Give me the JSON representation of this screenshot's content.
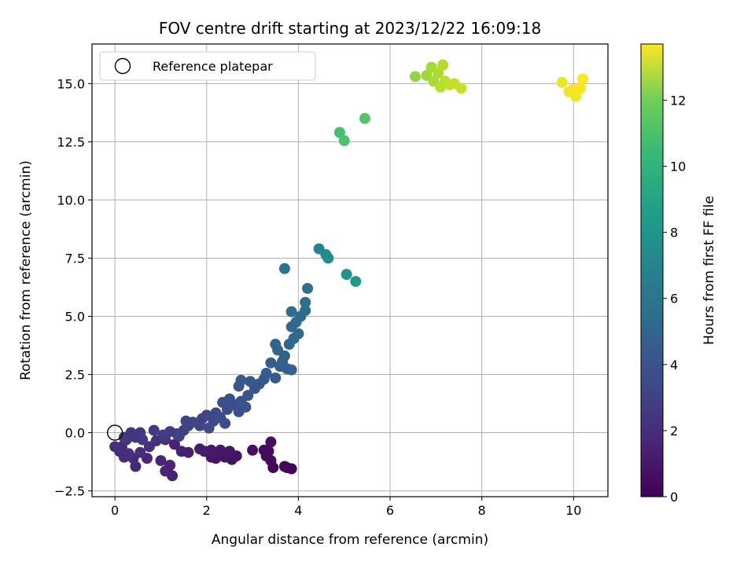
{
  "chart_data": {
    "type": "scatter",
    "title": "FOV centre drift starting at 2023/12/22 16:09:18",
    "xlabel": "Angular distance from reference (arcmin)",
    "ylabel": "Rotation from reference (arcmin)",
    "xlim": [
      -0.5,
      10.75
    ],
    "ylim": [
      -2.75,
      16.7
    ],
    "xticks": [
      0,
      2,
      4,
      6,
      8,
      10
    ],
    "yticks": [
      -2.5,
      0.0,
      2.5,
      5.0,
      7.5,
      10.0,
      12.5,
      15.0
    ],
    "xtick_labels": [
      "0",
      "2",
      "4",
      "6",
      "8",
      "10"
    ],
    "ytick_labels": [
      "−2.5",
      "0.0",
      "2.5",
      "5.0",
      "7.5",
      "10.0",
      "12.5",
      "15.0"
    ],
    "grid": true,
    "legend": {
      "placement": "upper-left",
      "entries": [
        "Reference platepar"
      ]
    },
    "reference_point": {
      "x": 0,
      "y": 0
    },
    "colorbar": {
      "label": "Hours from first FF file",
      "range": [
        0,
        13.7
      ],
      "ticks": [
        0,
        2,
        4,
        6,
        8,
        10,
        12
      ],
      "tick_labels": [
        "0",
        "2",
        "4",
        "6",
        "8",
        "10",
        "12"
      ],
      "colormap": "viridis"
    },
    "points": [
      [
        3.85,
        -1.55,
        0.05
      ],
      [
        3.75,
        -1.5,
        0.1
      ],
      [
        3.45,
        -1.5,
        0.15
      ],
      [
        3.7,
        -1.45,
        0.2
      ],
      [
        3.4,
        -1.2,
        0.3
      ],
      [
        3.3,
        -1.0,
        0.35
      ],
      [
        3.35,
        -0.8,
        0.4
      ],
      [
        3.25,
        -0.75,
        0.45
      ],
      [
        3.4,
        -0.4,
        0.5
      ],
      [
        3.0,
        -0.75,
        0.55
      ],
      [
        2.55,
        -1.15,
        0.6
      ],
      [
        2.65,
        -1.0,
        0.65
      ],
      [
        2.4,
        -1.05,
        0.7
      ],
      [
        2.2,
        -1.1,
        0.75
      ],
      [
        2.1,
        -1.05,
        0.8
      ],
      [
        2.5,
        -0.8,
        0.85
      ],
      [
        2.3,
        -0.75,
        0.9
      ],
      [
        2.1,
        -0.75,
        0.95
      ],
      [
        1.95,
        -0.8,
        1.0
      ],
      [
        1.85,
        -0.7,
        1.05
      ],
      [
        1.6,
        -0.85,
        1.1
      ],
      [
        1.45,
        -0.8,
        1.2
      ],
      [
        1.3,
        -0.5,
        1.25
      ],
      [
        1.25,
        -1.85,
        1.3
      ],
      [
        1.1,
        -1.65,
        1.35
      ],
      [
        1.2,
        -1.4,
        1.4
      ],
      [
        1.0,
        -1.2,
        1.45
      ],
      [
        0.7,
        -1.1,
        1.5
      ],
      [
        0.45,
        -1.45,
        1.55
      ],
      [
        0.4,
        -1.1,
        1.6
      ],
      [
        0.2,
        -1.05,
        1.65
      ],
      [
        0.1,
        -0.8,
        1.7
      ],
      [
        0.0,
        -0.6,
        1.75
      ],
      [
        0.15,
        -0.6,
        1.8
      ],
      [
        0.3,
        -0.9,
        1.85
      ],
      [
        0.55,
        -0.85,
        1.9
      ],
      [
        0.75,
        -0.6,
        1.95
      ],
      [
        0.9,
        -0.35,
        2.0
      ],
      [
        1.1,
        -0.3,
        2.05
      ],
      [
        0.25,
        -0.3,
        2.1
      ],
      [
        0.45,
        -0.2,
        2.15
      ],
      [
        0.55,
        0.0,
        2.2
      ],
      [
        0.35,
        0.0,
        2.25
      ],
      [
        0.2,
        -0.2,
        2.3
      ],
      [
        0.6,
        -0.3,
        2.35
      ],
      [
        0.85,
        0.1,
        2.4
      ],
      [
        1.05,
        -0.1,
        2.45
      ],
      [
        1.2,
        0.05,
        2.5
      ],
      [
        1.35,
        -0.05,
        2.55
      ],
      [
        1.5,
        0.1,
        2.6
      ],
      [
        1.4,
        -0.15,
        2.65
      ],
      [
        1.6,
        0.3,
        2.7
      ],
      [
        1.7,
        0.45,
        2.75
      ],
      [
        1.55,
        0.5,
        2.8
      ],
      [
        1.85,
        0.3,
        2.85
      ],
      [
        1.9,
        0.6,
        2.9
      ],
      [
        2.0,
        0.75,
        2.95
      ],
      [
        2.15,
        0.5,
        3.0
      ],
      [
        2.2,
        0.85,
        3.05
      ],
      [
        2.05,
        0.2,
        3.1
      ],
      [
        2.4,
        0.4,
        3.15
      ],
      [
        2.3,
        0.65,
        3.2
      ],
      [
        2.45,
        1.0,
        3.25
      ],
      [
        2.6,
        1.2,
        3.3
      ],
      [
        2.35,
        1.3,
        3.35
      ],
      [
        2.5,
        1.45,
        3.4
      ],
      [
        2.7,
        0.9,
        3.45
      ],
      [
        2.85,
        1.1,
        3.5
      ],
      [
        2.75,
        1.35,
        3.55
      ],
      [
        2.9,
        1.6,
        3.6
      ],
      [
        3.05,
        1.9,
        3.65
      ],
      [
        3.15,
        2.1,
        3.7
      ],
      [
        2.95,
        2.2,
        3.75
      ],
      [
        2.7,
        2.0,
        3.8
      ],
      [
        2.75,
        2.25,
        3.85
      ],
      [
        3.25,
        2.3,
        3.9
      ],
      [
        3.3,
        2.55,
        3.95
      ],
      [
        3.5,
        2.35,
        4.0
      ],
      [
        3.4,
        3.0,
        4.05
      ],
      [
        3.6,
        2.85,
        4.1
      ],
      [
        3.75,
        2.75,
        4.15
      ],
      [
        3.85,
        2.7,
        4.2
      ],
      [
        3.65,
        3.05,
        4.25
      ],
      [
        3.7,
        3.3,
        4.3
      ],
      [
        3.55,
        3.55,
        4.35
      ],
      [
        3.5,
        3.8,
        4.4
      ],
      [
        3.8,
        3.8,
        4.45
      ],
      [
        3.9,
        4.05,
        4.5
      ],
      [
        4.0,
        4.25,
        4.55
      ],
      [
        3.85,
        4.55,
        4.6
      ],
      [
        4.05,
        5.0,
        4.65
      ],
      [
        3.95,
        4.75,
        4.7
      ],
      [
        4.15,
        5.25,
        4.75
      ],
      [
        3.85,
        5.2,
        4.8
      ],
      [
        4.15,
        5.6,
        4.9
      ],
      [
        4.2,
        6.2,
        5.0
      ],
      [
        3.7,
        7.05,
        5.3
      ],
      [
        4.45,
        7.9,
        6.2
      ],
      [
        4.6,
        7.65,
        6.5
      ],
      [
        4.65,
        7.5,
        6.7
      ],
      [
        5.05,
        6.8,
        7.0
      ],
      [
        5.25,
        6.5,
        7.3
      ],
      [
        4.9,
        12.9,
        9.6
      ],
      [
        5.0,
        12.55,
        9.8
      ],
      [
        5.45,
        13.5,
        10.0
      ],
      [
        6.55,
        15.3,
        11.4
      ],
      [
        6.8,
        15.35,
        11.6
      ],
      [
        6.9,
        15.7,
        11.8
      ],
      [
        6.95,
        15.1,
        11.9
      ],
      [
        7.05,
        15.45,
        12.0
      ],
      [
        7.15,
        15.8,
        12.1
      ],
      [
        7.1,
        14.85,
        12.2
      ],
      [
        7.2,
        15.1,
        12.3
      ],
      [
        7.3,
        14.95,
        12.4
      ],
      [
        7.4,
        15.0,
        12.5
      ],
      [
        7.55,
        14.8,
        12.6
      ],
      [
        9.75,
        15.05,
        13.3
      ],
      [
        9.9,
        14.65,
        13.4
      ],
      [
        10.05,
        14.45,
        13.5
      ],
      [
        10.0,
        14.75,
        13.55
      ],
      [
        10.15,
        14.8,
        13.6
      ],
      [
        10.2,
        15.2,
        13.65
      ]
    ]
  }
}
